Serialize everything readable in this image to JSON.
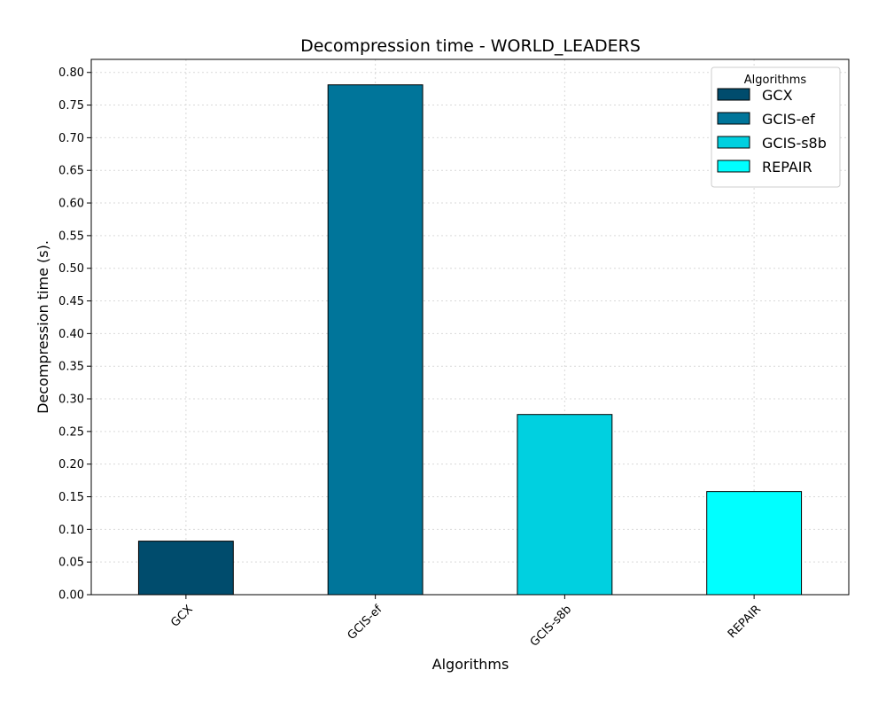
{
  "chart_data": {
    "type": "bar",
    "title": "Decompression time -  WORLD_LEADERS",
    "xlabel": "Algorithms",
    "ylabel": "Decompression time (s).",
    "categories": [
      "GCX",
      "GCIS-ef",
      "GCIS-s8b",
      "REPAIR"
    ],
    "values": [
      0.082,
      0.781,
      0.276,
      0.158
    ],
    "colors": [
      "#004c6d",
      "#00759a",
      "#00d0e0",
      "#00ffff"
    ],
    "ylim": [
      0,
      0.82
    ],
    "yticks": [
      0.0,
      0.05,
      0.1,
      0.15,
      0.2,
      0.25,
      0.3,
      0.35,
      0.4,
      0.45,
      0.5,
      0.55,
      0.6,
      0.65,
      0.7,
      0.75,
      0.8
    ],
    "grid": true,
    "legend": {
      "title": "Algorithms",
      "position": "top-right",
      "entries": [
        "GCX",
        "GCIS-ef",
        "GCIS-s8b",
        "REPAIR"
      ]
    }
  }
}
